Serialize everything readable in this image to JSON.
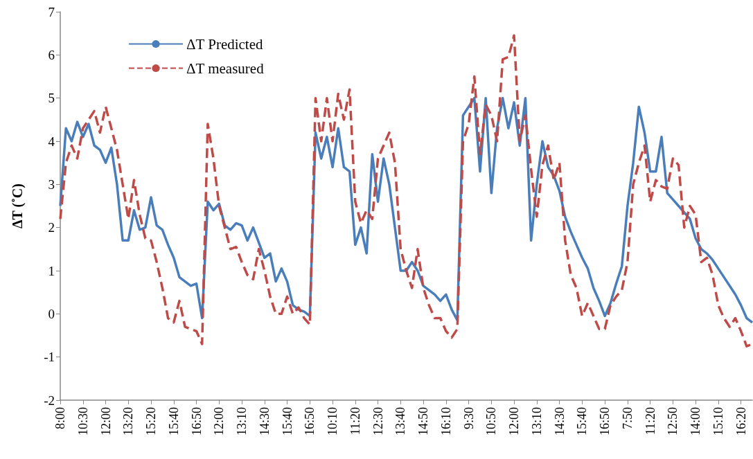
{
  "chart_data": {
    "type": "line",
    "ylabel": "ΔT (˚C)",
    "ylim": [
      -2,
      7
    ],
    "yticks": [
      -2,
      -1,
      0,
      1,
      2,
      3,
      4,
      5,
      6,
      7
    ],
    "grid": false,
    "legend": "top left",
    "marker": "none",
    "categories": [
      "8:00",
      null,
      null,
      null,
      "10:30",
      null,
      null,
      null,
      "12:00",
      null,
      null,
      null,
      "13:20",
      null,
      null,
      null,
      "15:20",
      null,
      null,
      null,
      "15:40",
      null,
      null,
      null,
      "16:50",
      null,
      null,
      null,
      "12:00",
      null,
      null,
      null,
      "13:10",
      null,
      null,
      null,
      "14:30",
      null,
      null,
      null,
      "15:40",
      null,
      null,
      null,
      "16:50",
      null,
      null,
      null,
      "10:10",
      null,
      null,
      null,
      "11:20",
      null,
      null,
      null,
      "12:30",
      null,
      null,
      null,
      "13:40",
      null,
      null,
      null,
      "14:50",
      null,
      null,
      null,
      "16:10",
      null,
      null,
      null,
      "9:30",
      null,
      null,
      null,
      "10:50",
      null,
      null,
      null,
      "12:00",
      null,
      null,
      null,
      "13:10",
      null,
      null,
      null,
      "14:30",
      null,
      null,
      null,
      "15:40",
      null,
      null,
      null,
      "16:50",
      null,
      null,
      null,
      "7:50",
      null,
      null,
      null,
      "11:20",
      null,
      null,
      null,
      "12:50",
      null,
      null,
      null,
      "14:00",
      null,
      null,
      null,
      "15:10",
      null,
      null,
      null,
      "16:20",
      null,
      null
    ],
    "series": [
      {
        "name": "ΔT Predicted",
        "color": "#4a7ebb",
        "line_style": "solid",
        "values": [
          2.5,
          4.3,
          4.0,
          4.45,
          4.1,
          4.4,
          3.9,
          3.8,
          3.5,
          3.85,
          3.0,
          1.7,
          1.7,
          2.4,
          1.95,
          2.0,
          2.7,
          2.05,
          1.95,
          1.6,
          1.3,
          0.85,
          0.75,
          0.65,
          0.7,
          -0.1,
          2.6,
          2.4,
          2.55,
          2.05,
          1.95,
          2.1,
          2.05,
          1.7,
          2.0,
          1.65,
          1.3,
          1.4,
          0.75,
          1.05,
          0.75,
          0.2,
          0.1,
          0.05,
          -0.05,
          4.2,
          3.6,
          4.1,
          3.4,
          4.3,
          3.4,
          3.3,
          1.6,
          2.0,
          1.4,
          3.7,
          2.6,
          3.6,
          3.0,
          2.0,
          1.0,
          1.0,
          1.2,
          1.0,
          0.65,
          0.55,
          0.45,
          0.3,
          0.45,
          0.1,
          -0.15,
          4.6,
          4.8,
          5.0,
          3.3,
          5.0,
          2.8,
          4.3,
          5.0,
          4.3,
          4.9,
          3.9,
          5.0,
          1.7,
          3.0,
          4.0,
          3.4,
          3.2,
          2.85,
          2.25,
          1.9,
          1.6,
          1.3,
          1.05,
          0.6,
          0.3,
          -0.05,
          0.25,
          0.7,
          1.1,
          2.5,
          3.5,
          4.8,
          4.2,
          3.3,
          3.3,
          4.1,
          2.8,
          2.65,
          2.5,
          2.35,
          2.2,
          1.75,
          1.5,
          1.4,
          1.25,
          1.05,
          0.85,
          0.65,
          0.45,
          0.2,
          -0.1,
          -0.2
        ]
      },
      {
        "name": "ΔT measured",
        "color": "#be4b48",
        "line_style": "dashed",
        "values": [
          2.2,
          3.5,
          3.9,
          3.6,
          4.3,
          4.5,
          4.7,
          4.2,
          4.8,
          4.3,
          3.8,
          3.0,
          2.2,
          3.1,
          2.3,
          1.75,
          1.7,
          1.2,
          0.6,
          -0.1,
          -0.2,
          0.3,
          -0.3,
          -0.35,
          -0.4,
          -0.7,
          4.4,
          3.6,
          2.5,
          2.0,
          1.5,
          1.55,
          1.2,
          0.9,
          0.8,
          1.5,
          1.0,
          0.4,
          0.0,
          0.0,
          0.4,
          0.0,
          0.15,
          -0.1,
          -0.25,
          5.0,
          4.0,
          5.0,
          4.0,
          5.1,
          4.5,
          5.2,
          2.6,
          2.1,
          2.4,
          2.2,
          3.6,
          3.9,
          4.2,
          3.5,
          1.5,
          1.0,
          0.6,
          1.5,
          0.6,
          0.2,
          -0.1,
          -0.1,
          -0.4,
          -0.55,
          -0.35,
          4.0,
          4.4,
          5.5,
          3.7,
          4.85,
          4.6,
          4.0,
          5.9,
          5.95,
          6.45,
          4.0,
          4.6,
          3.35,
          2.25,
          3.45,
          3.9,
          3.1,
          3.5,
          1.7,
          0.9,
          0.6,
          -0.05,
          0.25,
          -0.05,
          -0.35,
          -0.35,
          0.2,
          0.4,
          0.55,
          1.2,
          3.0,
          3.5,
          3.9,
          2.6,
          3.1,
          2.95,
          2.9,
          3.6,
          3.45,
          2.0,
          2.5,
          2.3,
          1.2,
          1.3,
          0.9,
          0.2,
          -0.1,
          -0.3,
          -0.1,
          -0.4,
          -0.75,
          -0.7
        ]
      }
    ]
  }
}
